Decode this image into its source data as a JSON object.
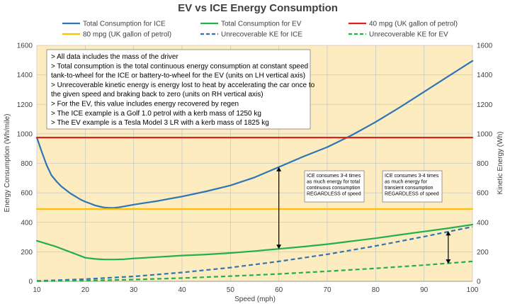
{
  "chart_data": {
    "type": "line",
    "title": "EV vs ICE Energy Consumption",
    "xlabel": "Speed (mph)",
    "ylabel_left": "Energy Consumption (Wh/mile)",
    "ylabel_right": "Kinetic Energy (Wh)",
    "xlim": [
      10,
      100
    ],
    "ylim": [
      0,
      1600
    ],
    "x_ticks": [
      "10",
      "20",
      "30",
      "40",
      "50",
      "60",
      "70",
      "80",
      "90",
      "100"
    ],
    "y_ticks": [
      "0",
      "200",
      "400",
      "600",
      "800",
      "1000",
      "1200",
      "1400",
      "1600"
    ],
    "grid": true,
    "plot_background": "#fdecbf",
    "series": [
      {
        "name": "Total Consumption for ICE",
        "color": "#2e75b6",
        "style": "solid",
        "x": [
          10,
          11,
          12,
          13,
          14,
          15,
          16,
          17,
          18,
          19,
          20,
          21,
          22,
          23,
          24,
          25,
          26,
          27,
          28,
          30,
          32,
          35,
          40,
          45,
          50,
          55,
          60,
          65,
          70,
          75,
          80,
          85,
          90,
          95,
          100
        ],
        "y": [
          975,
          880,
          790,
          720,
          680,
          645,
          620,
          595,
          575,
          555,
          540,
          528,
          515,
          507,
          500,
          498,
          498,
          502,
          508,
          520,
          530,
          545,
          575,
          610,
          650,
          705,
          775,
          845,
          910,
          990,
          1080,
          1180,
          1285,
          1390,
          1495
        ]
      },
      {
        "name": "Total Consumption for EV",
        "color": "#22b04a",
        "style": "solid",
        "x": [
          10,
          12,
          14,
          16,
          18,
          20,
          22,
          24,
          26,
          28,
          30,
          35,
          40,
          45,
          50,
          55,
          60,
          65,
          70,
          75,
          80,
          85,
          90,
          95,
          100
        ],
        "y": [
          275,
          255,
          235,
          210,
          185,
          160,
          152,
          148,
          148,
          150,
          155,
          165,
          175,
          182,
          192,
          205,
          220,
          235,
          252,
          272,
          292,
          315,
          338,
          360,
          385
        ]
      },
      {
        "name": "40 mpg (UK gallon of petrol)",
        "color": "#e32020",
        "style": "solid",
        "x": [
          10,
          100
        ],
        "y": [
          975,
          975
        ]
      },
      {
        "name": "80 mpg (UK gallon of petrol)",
        "color": "#ffc000",
        "style": "solid",
        "x": [
          10,
          100
        ],
        "y": [
          490,
          490
        ]
      },
      {
        "name": "Unrecoverable KE for ICE",
        "color": "#2e75b6",
        "style": "dashed",
        "x": [
          10,
          20,
          30,
          40,
          50,
          60,
          70,
          80,
          90,
          100
        ],
        "y": [
          3,
          15,
          33,
          60,
          93,
          135,
          183,
          240,
          303,
          370
        ]
      },
      {
        "name": "Unrecoverable KE for EV",
        "color": "#22b04a",
        "style": "dashed",
        "x": [
          10,
          20,
          30,
          40,
          50,
          60,
          70,
          80,
          90,
          100
        ],
        "y": [
          1,
          5,
          12,
          22,
          35,
          50,
          68,
          88,
          110,
          135
        ]
      }
    ],
    "notes_box": [
      "> All  data includes the mass of the driver",
      "> Total consumption is the total continuous energy consumption at constant speed",
      "tank-to-wheel for the ICE or battery-to-wheel for the EV (units on LH vertical axis)",
      "> Unrecoverable kinetic energy is energy lost to heat by accelerating the car once to",
      "the given speed and braking back to zero (units on RH vertical axis)",
      "> For the EV, this value includes energy recovered by regen",
      "> The ICE example is a Golf 1.0 petrol with a kerb mass of 1250 kg",
      "> The EV example is a Tesla Model 3 LR with a kerb mass of 1825 kg"
    ],
    "annotations": [
      {
        "lines": [
          "ICE consumes 3-4 times",
          "as much energy for total",
          "continuous consumption",
          "REGARDLESS of speed"
        ],
        "arrow_x": 60,
        "arrow_y": [
          220,
          775
        ]
      },
      {
        "lines": [
          "ICE consumes 3-4 times",
          "as much energy for",
          "transient consumption",
          "REGARDLESS of speed"
        ],
        "arrow_x": 95,
        "arrow_y": [
          120,
          340
        ]
      }
    ]
  }
}
